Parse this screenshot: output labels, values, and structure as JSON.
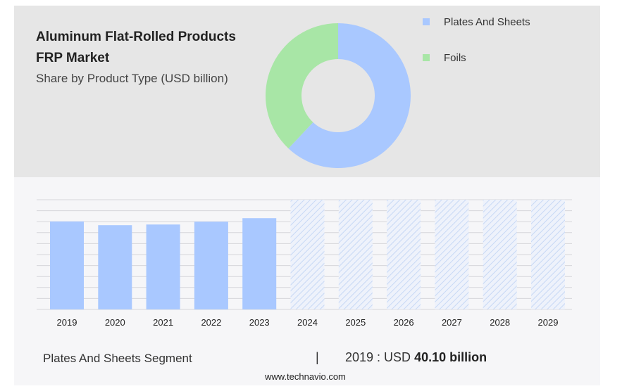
{
  "title_line1": "Aluminum Flat-Rolled Products",
  "title_line2": "FRP Market",
  "subtitle": "Share by Product Type (USD billion)",
  "colors": {
    "plates": "#a9c8ff",
    "foils": "#a8e6a6",
    "forecast_hatch": "#c7d8f5"
  },
  "chart_data": [
    {
      "type": "pie",
      "donut": true,
      "slices": [
        {
          "label": "Plates And Sheets",
          "value": 62
        },
        {
          "label": "Foils",
          "value": 38
        }
      ],
      "legend_position": "top-right"
    },
    {
      "type": "bar",
      "categories": [
        "2019",
        "2020",
        "2021",
        "2022",
        "2023",
        "2024",
        "2025",
        "2026",
        "2027",
        "2028",
        "2029"
      ],
      "values": [
        40.1,
        38.4,
        38.7,
        40.0,
        41.6,
        null,
        null,
        null,
        null,
        null,
        null
      ],
      "forecast_from": "2024",
      "ylim": [
        0,
        50
      ],
      "grid": true
    }
  ],
  "footer": {
    "segment": "Plates And Sheets Segment",
    "separator": "|",
    "year_prefix": "2019 : USD",
    "value": "40.10 billion"
  },
  "source": "www.technavio.com"
}
